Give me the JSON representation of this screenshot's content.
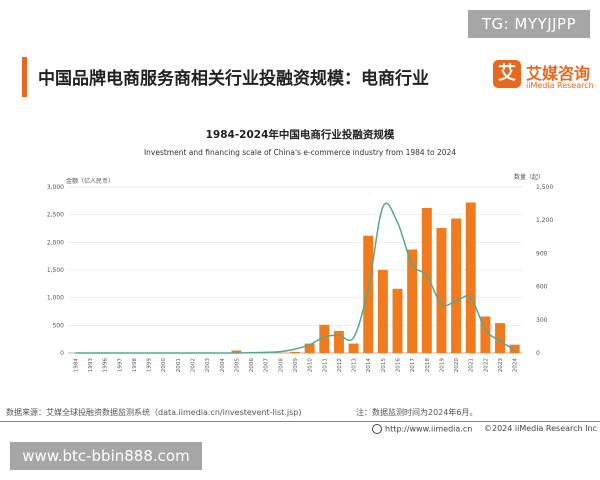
{
  "badge": {
    "text": "TG: MYYJJPP"
  },
  "header": {
    "title": "中国品牌电商服务商相关行业投融资规模：电商行业"
  },
  "brand": {
    "icon_char": "艾",
    "name": "艾媒咨询",
    "sub": "iiMedia Research"
  },
  "chart_data": {
    "type": "bar",
    "title": "1984-2024年中国电商行业投融资规模",
    "subtitle": "Investment and financing scale of China's e-commerce industry from 1984 to 2024",
    "left_axis_label": "金额（亿人民币）",
    "right_axis_label": "数量（起）",
    "left_ylim": [
      0,
      3000
    ],
    "left_ticks": [
      "0",
      "500",
      "1,000",
      "1,500",
      "2,000",
      "2,500",
      "3,000"
    ],
    "right_ylim": [
      0,
      1500
    ],
    "right_ticks": [
      "0",
      "300",
      "600",
      "900",
      "1,200",
      "1,500"
    ],
    "categories": [
      "1984",
      "1993",
      "1996",
      "1997",
      "1998",
      "1999",
      "2000",
      "2001",
      "2002",
      "2003",
      "2004",
      "2005",
      "2006",
      "2007",
      "2008",
      "2009",
      "2010",
      "2011",
      "2012",
      "2013",
      "2014",
      "2015",
      "2016",
      "2017",
      "2018",
      "2019",
      "2020",
      "2021",
      "2022",
      "2023",
      "2024"
    ],
    "series": [
      {
        "type": "bar",
        "axis": "left",
        "color": "#f07b1f",
        "values": [
          0,
          0,
          0,
          0,
          0,
          0,
          5,
          5,
          0,
          0,
          0,
          45,
          10,
          10,
          5,
          20,
          170,
          510,
          400,
          170,
          2120,
          1500,
          1160,
          1870,
          2620,
          2260,
          2430,
          2720,
          660,
          540,
          150
        ]
      },
      {
        "type": "line",
        "axis": "right",
        "color": "#55a88e",
        "values": [
          0,
          0,
          0,
          0,
          0,
          0,
          0,
          0,
          0,
          0,
          0,
          0,
          3,
          6,
          12,
          35,
          75,
          145,
          160,
          140,
          580,
          1320,
          1180,
          800,
          700,
          440,
          470,
          500,
          210,
          110,
          25
        ]
      }
    ],
    "grid": true
  },
  "source": {
    "text": "数据来源：艾媒全球投融资数据监测系统（data.iimedia.cn/investevent-list.jsp)"
  },
  "note": {
    "text": "注：数据监测时间为2024年6月。"
  },
  "footer": {
    "url": "http://www.iimedia.cn",
    "copyright": "©2024  iiMedia Research  Inc"
  },
  "watermark": {
    "text": "www.btc-bbin888.com"
  }
}
